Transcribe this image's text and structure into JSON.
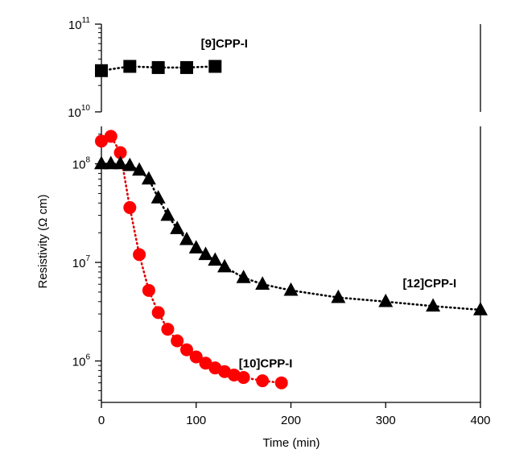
{
  "chart_data": {
    "type": "scatter",
    "xlabel": "Time (min)",
    "ylabel": "Resistivity (Ω cm)",
    "xlim": [
      0,
      400
    ],
    "x_ticks": [
      {
        "value": 0,
        "label": "0"
      },
      {
        "value": 100,
        "label": "100"
      },
      {
        "value": 200,
        "label": "200"
      },
      {
        "value": 300,
        "label": "300"
      },
      {
        "value": 400,
        "label": "400"
      }
    ],
    "y_scale": "log",
    "broken_axis": true,
    "panels": [
      {
        "name": "upper",
        "ylim": [
          10000000000.0,
          100000000000.0
        ],
        "y_ticks": [
          {
            "value": 10000000000.0,
            "base": "10",
            "exp": "10"
          },
          {
            "value": 100000000000.0,
            "base": "10",
            "exp": "11"
          }
        ]
      },
      {
        "name": "lower",
        "ylim": [
          380000.0,
          240000000.0
        ],
        "y_ticks": [
          {
            "value": 1000000.0,
            "base": "10",
            "exp": "6"
          },
          {
            "value": 10000000.0,
            "base": "10",
            "exp": "7"
          },
          {
            "value": 100000000.0,
            "base": "10",
            "exp": "8"
          }
        ]
      }
    ],
    "series": [
      {
        "name": "[9]CPP-I",
        "panel": "upper",
        "marker": "square",
        "color": "#000000",
        "line_color": "#000000",
        "label_at": [
          105,
          54000000000.0
        ],
        "x": [
          0,
          30,
          60,
          90,
          120
        ],
        "y": [
          29500000000.0,
          33000000000.0,
          32000000000.0,
          32000000000.0,
          33000000000.0
        ]
      },
      {
        "name": "[10]CPP-I",
        "panel": "lower",
        "marker": "circle",
        "color": "#ff0000",
        "line_color": "#e00000",
        "label_at": [
          145,
          860000.0
        ],
        "x": [
          0,
          10,
          20,
          30,
          40,
          50,
          60,
          70,
          80,
          90,
          100,
          110,
          120,
          130,
          140,
          150,
          170,
          190
        ],
        "y": [
          170000000.0,
          190000000.0,
          130000000.0,
          36000000.0,
          12000000.0,
          5200000.0,
          3100000.0,
          2100000.0,
          1600000.0,
          1300000.0,
          1100000.0,
          950000.0,
          850000.0,
          780000.0,
          720000.0,
          680000.0,
          630000.0,
          600000.0
        ]
      },
      {
        "name": "[12]CPP-I",
        "panel": "lower",
        "marker": "triangle",
        "color": "#000000",
        "line_color": "#000000",
        "label_at": [
          318,
          5600000.0
        ],
        "x": [
          0,
          10,
          20,
          30,
          40,
          50,
          60,
          70,
          80,
          90,
          100,
          110,
          120,
          130,
          150,
          170,
          200,
          250,
          300,
          350,
          400
        ],
        "y": [
          100000000.0,
          100000000.0,
          100000000.0,
          96000000.0,
          86000000.0,
          70000000.0,
          45000000.0,
          30000000.0,
          22000000.0,
          17000000.0,
          14000000.0,
          12000000.0,
          10500000.0,
          9000000.0,
          7000000.0,
          6000000.0,
          5200000.0,
          4400000.0,
          4000000.0,
          3600000.0,
          3300000.0
        ]
      }
    ]
  }
}
